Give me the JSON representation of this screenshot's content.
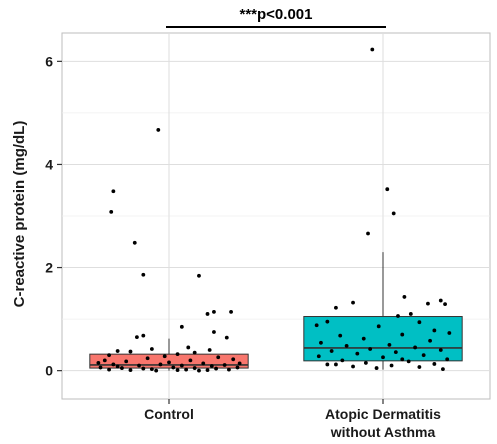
{
  "chart_data": {
    "type": "box",
    "ylabel": "C-reactive protein (mg/dL)",
    "xlabel": "",
    "ylim": [
      -0.55,
      6.55
    ],
    "yticks": [
      0,
      2,
      4,
      6
    ],
    "grid": true,
    "categories": [
      "Control",
      "Atopic Dermatitis\nwithout Asthma"
    ],
    "category_lines": [
      [
        "Control"
      ],
      [
        "Atopic Dermatitis",
        "without Asthma"
      ]
    ],
    "boxes": [
      {
        "category": "Control",
        "q1": 0.05,
        "median": 0.11,
        "q3": 0.32,
        "whisker_low": 0.0,
        "whisker_high": 0.62,
        "color": "#F8766D"
      },
      {
        "category": "Atopic Dermatitis\nwithout Asthma",
        "q1": 0.19,
        "median": 0.44,
        "q3": 1.05,
        "whisker_low": 0.02,
        "whisker_high": 2.3,
        "color": "#00BFC4"
      }
    ],
    "points": [
      [
        [
          -0.05,
          4.67
        ],
        [
          -0.26,
          3.48
        ],
        [
          -0.27,
          3.08
        ],
        [
          -0.16,
          2.48
        ],
        [
          -0.12,
          1.86
        ],
        [
          0.14,
          1.84
        ],
        [
          0.21,
          1.14
        ],
        [
          0.29,
          1.14
        ],
        [
          0.18,
          1.1
        ],
        [
          0.06,
          0.85
        ],
        [
          0.21,
          0.75
        ],
        [
          -0.12,
          0.68
        ],
        [
          -0.15,
          0.65
        ],
        [
          0.27,
          0.64
        ],
        [
          0.09,
          0.45
        ],
        [
          0.19,
          0.4
        ],
        [
          0.04,
          0.32
        ],
        [
          -0.24,
          0.38
        ],
        [
          -0.18,
          0.37
        ],
        [
          -0.08,
          0.42
        ],
        [
          0.12,
          0.35
        ],
        [
          -0.28,
          0.3
        ],
        [
          -0.02,
          0.28
        ],
        [
          0.23,
          0.26
        ],
        [
          0.3,
          0.22
        ],
        [
          -0.3,
          0.2
        ],
        [
          -0.2,
          0.18
        ],
        [
          -0.1,
          0.24
        ],
        [
          0.0,
          0.16
        ],
        [
          0.1,
          0.2
        ],
        [
          0.16,
          0.14
        ],
        [
          -0.26,
          0.12
        ],
        [
          -0.14,
          0.1
        ],
        [
          -0.04,
          0.12
        ],
        [
          0.06,
          0.1
        ],
        [
          0.26,
          0.11
        ],
        [
          -0.32,
          0.06
        ],
        [
          -0.22,
          0.05
        ],
        [
          -0.12,
          0.04
        ],
        [
          0.02,
          0.06
        ],
        [
          0.12,
          0.05
        ],
        [
          0.22,
          0.04
        ],
        [
          0.32,
          0.06
        ],
        [
          -0.28,
          0.02
        ],
        [
          -0.18,
          0.01
        ],
        [
          -0.08,
          0.03
        ],
        [
          0.08,
          0.02
        ],
        [
          0.18,
          0.01
        ],
        [
          0.28,
          0.02
        ],
        [
          -0.06,
          0.0
        ],
        [
          0.04,
          0.01
        ],
        [
          0.14,
          0.0
        ],
        [
          -0.24,
          0.08
        ],
        [
          0.2,
          0.09
        ],
        [
          -0.33,
          0.15
        ],
        [
          0.33,
          0.14
        ]
      ],
      [
        [
          -0.05,
          6.23
        ],
        [
          0.02,
          3.52
        ],
        [
          0.05,
          3.05
        ],
        [
          -0.07,
          2.66
        ],
        [
          0.1,
          1.43
        ],
        [
          0.27,
          1.36
        ],
        [
          -0.14,
          1.32
        ],
        [
          0.29,
          1.29
        ],
        [
          0.21,
          1.3
        ],
        [
          -0.22,
          1.22
        ],
        [
          0.13,
          1.1
        ],
        [
          0.07,
          1.06
        ],
        [
          -0.26,
          0.95
        ],
        [
          0.17,
          0.94
        ],
        [
          -0.31,
          0.88
        ],
        [
          -0.02,
          0.86
        ],
        [
          0.24,
          0.78
        ],
        [
          0.31,
          0.73
        ],
        [
          0.09,
          0.7
        ],
        [
          -0.2,
          0.68
        ],
        [
          -0.09,
          0.62
        ],
        [
          0.22,
          0.58
        ],
        [
          -0.29,
          0.54
        ],
        [
          0.03,
          0.5
        ],
        [
          -0.17,
          0.48
        ],
        [
          0.15,
          0.45
        ],
        [
          -0.06,
          0.42
        ],
        [
          0.27,
          0.4
        ],
        [
          -0.24,
          0.38
        ],
        [
          0.06,
          0.36
        ],
        [
          -0.12,
          0.33
        ],
        [
          0.19,
          0.3
        ],
        [
          -0.3,
          0.28
        ],
        [
          0.0,
          0.26
        ],
        [
          0.3,
          0.22
        ],
        [
          -0.19,
          0.2
        ],
        [
          0.12,
          0.18
        ],
        [
          -0.08,
          0.15
        ],
        [
          0.24,
          0.13
        ],
        [
          -0.26,
          0.12
        ],
        [
          0.04,
          0.1
        ],
        [
          -0.14,
          0.08
        ],
        [
          0.17,
          0.07
        ],
        [
          -0.03,
          0.05
        ],
        [
          0.28,
          0.03
        ],
        [
          -0.22,
          0.12
        ],
        [
          0.09,
          0.22
        ]
      ]
    ],
    "annotation": {
      "text": "***p<0.001",
      "from": 0,
      "to": 1,
      "y": 7.0
    }
  }
}
